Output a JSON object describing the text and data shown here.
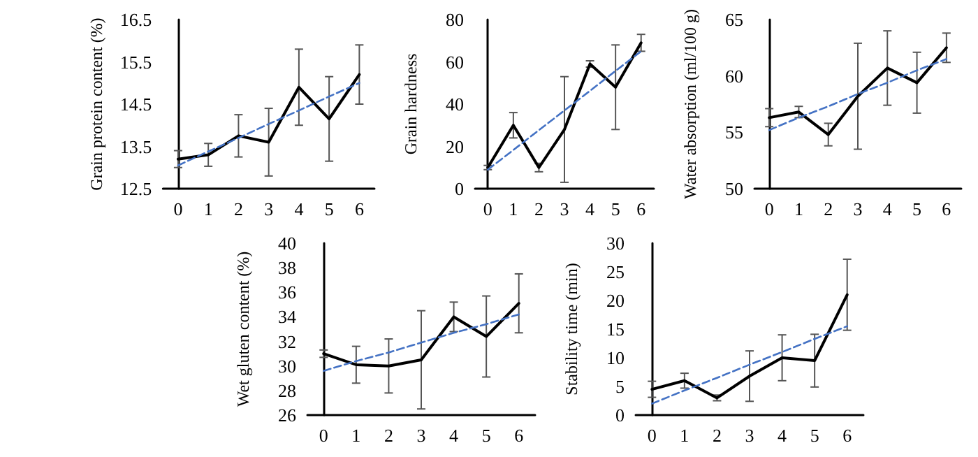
{
  "chart_data": [
    {
      "type": "line",
      "ylabel": "Grain protein content (%)",
      "x": [
        0,
        1,
        2,
        3,
        4,
        5,
        6
      ],
      "xlim": [
        -0.5,
        6.5
      ],
      "xticks": [
        0,
        1,
        2,
        3,
        4,
        5,
        6
      ],
      "ylim": [
        12.5,
        16.5
      ],
      "yticks": [
        12.5,
        13.5,
        14.5,
        15.5,
        16.5
      ],
      "marker": "none",
      "series": [
        {
          "color": "#000000",
          "line_style": "solid",
          "values": [
            13.2,
            13.3,
            13.75,
            13.6,
            14.9,
            14.15,
            15.2
          ],
          "errors": [
            0.2,
            0.27,
            0.5,
            0.8,
            0.9,
            1.0,
            0.7
          ]
        },
        {
          "type": "line",
          "values": [
            13.05,
            13.38,
            13.7,
            14.03,
            14.35,
            14.68,
            15.0
          ],
          "color": "#4472c4",
          "line_style": "dashed"
        }
      ]
    },
    {
      "type": "line",
      "ylabel": "Grain hardness",
      "x": [
        0,
        1,
        2,
        3,
        4,
        5,
        6
      ],
      "xlim": [
        -0.5,
        6.5
      ],
      "xticks": [
        0,
        1,
        2,
        3,
        4,
        5,
        6
      ],
      "ylim": [
        0,
        80
      ],
      "yticks": [
        0,
        20,
        40,
        60,
        80
      ],
      "marker": "none",
      "series": [
        {
          "color": "#000000",
          "line_style": "solid",
          "values": [
            10,
            30,
            10,
            28,
            59,
            48,
            69
          ],
          "errors": [
            1,
            6,
            2,
            25,
            1.5,
            20,
            4
          ]
        },
        {
          "type": "line",
          "values": [
            9,
            18.3,
            27.7,
            37,
            46.3,
            55.7,
            65
          ],
          "color": "#4472c4",
          "line_style": "dashed"
        }
      ]
    },
    {
      "type": "line",
      "ylabel": "Water absorption (ml/100 g)",
      "x": [
        0,
        1,
        2,
        3,
        4,
        5,
        6
      ],
      "xlim": [
        -0.5,
        6.5
      ],
      "xticks": [
        0,
        1,
        2,
        3,
        4,
        5,
        6
      ],
      "ylim": [
        50,
        65
      ],
      "yticks": [
        50,
        55,
        60,
        65
      ],
      "marker": "none",
      "series": [
        {
          "color": "#000000",
          "line_style": "solid",
          "values": [
            56.3,
            56.8,
            54.8,
            58.2,
            60.7,
            59.4,
            62.5
          ],
          "errors": [
            0.8,
            0.5,
            1,
            4.7,
            3.3,
            2.7,
            1.3
          ]
        },
        {
          "type": "line",
          "values": [
            55.2,
            56.3,
            57.3,
            58.4,
            59.4,
            60.5,
            61.5
          ],
          "color": "#4472c4",
          "line_style": "dashed"
        }
      ]
    },
    {
      "type": "line",
      "ylabel": "Wet gluten content (%)",
      "x": [
        0,
        1,
        2,
        3,
        4,
        5,
        6
      ],
      "xlim": [
        -0.5,
        6.5
      ],
      "xticks": [
        0,
        1,
        2,
        3,
        4,
        5,
        6
      ],
      "ylim": [
        26,
        40
      ],
      "yticks": [
        26,
        28,
        30,
        32,
        34,
        36,
        38,
        40
      ],
      "marker": "none",
      "series": [
        {
          "color": "#000000",
          "line_style": "solid",
          "values": [
            31,
            30.1,
            30,
            30.5,
            34,
            32.4,
            35.1
          ],
          "errors": [
            0.3,
            1.5,
            2.2,
            4,
            1.2,
            3.3,
            2.4
          ]
        },
        {
          "type": "line",
          "values": [
            29.6,
            30.4,
            31.1,
            31.9,
            32.7,
            33.4,
            34.2
          ],
          "color": "#4472c4",
          "line_style": "dashed"
        }
      ]
    },
    {
      "type": "line",
      "ylabel": "Stability time (min)",
      "x": [
        0,
        1,
        2,
        3,
        4,
        5,
        6
      ],
      "xlim": [
        -0.5,
        6.5
      ],
      "xticks": [
        0,
        1,
        2,
        3,
        4,
        5,
        6
      ],
      "ylim": [
        0,
        30
      ],
      "yticks": [
        0,
        5,
        10,
        15,
        20,
        25,
        30
      ],
      "marker": "none",
      "series": [
        {
          "color": "#000000",
          "line_style": "solid",
          "values": [
            4.5,
            6,
            3,
            6.8,
            10,
            9.5,
            21
          ],
          "errors": [
            1.4,
            1.3,
            0.5,
            4.4,
            4,
            4.6,
            6.2
          ]
        },
        {
          "type": "line",
          "values": [
            2,
            4.3,
            6.5,
            8.8,
            11,
            13.3,
            15.5
          ],
          "color": "#4472c4",
          "line_style": "dashed"
        }
      ]
    }
  ]
}
